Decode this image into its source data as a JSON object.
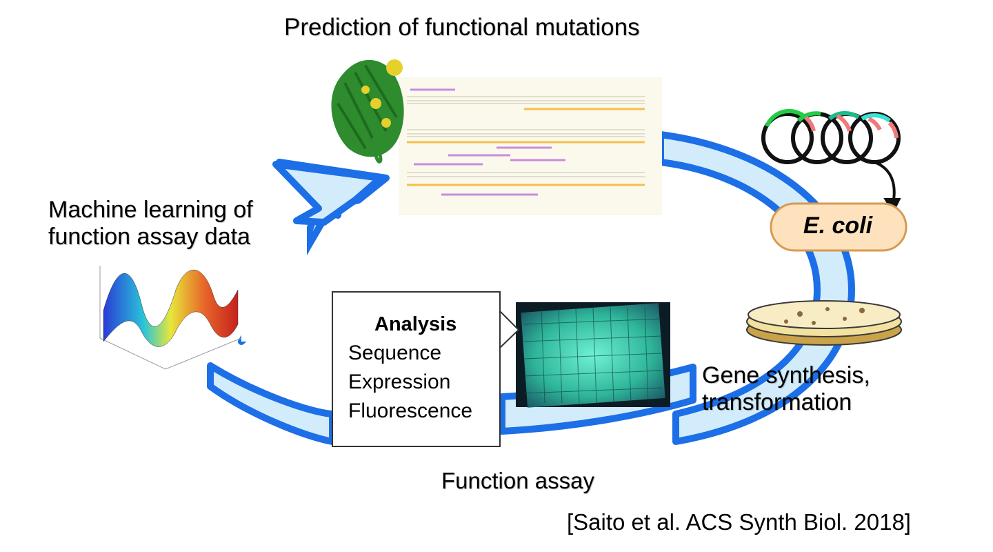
{
  "title": "Prediction of functional mutations",
  "machine_learning": {
    "line1": "Machine learning of",
    "line2": "function assay data"
  },
  "gene_synthesis": {
    "line1": "Gene synthesis,",
    "line2": "transformation"
  },
  "function_assay": "Function assay",
  "analysis": {
    "heading": "Analysis",
    "items": [
      "Sequence",
      "Expression",
      "Fluorescence"
    ]
  },
  "ecoli": "E. coli",
  "citation": "[Saito et al. ACS Synth Biol. 2018]",
  "colors": {
    "arrow_outline": "#1c6fe6",
    "arrow_fill": "#d3ecfb",
    "ecoli_fill": "#fde2bd",
    "ecoli_border": "#d89a50",
    "plate_glow": "#3fd6b6"
  },
  "icons": [
    "protein-structure-icon",
    "plasmid-coils-icon",
    "petri-dish-icon",
    "surface-plot-icon",
    "fluorescence-plate-icon"
  ]
}
